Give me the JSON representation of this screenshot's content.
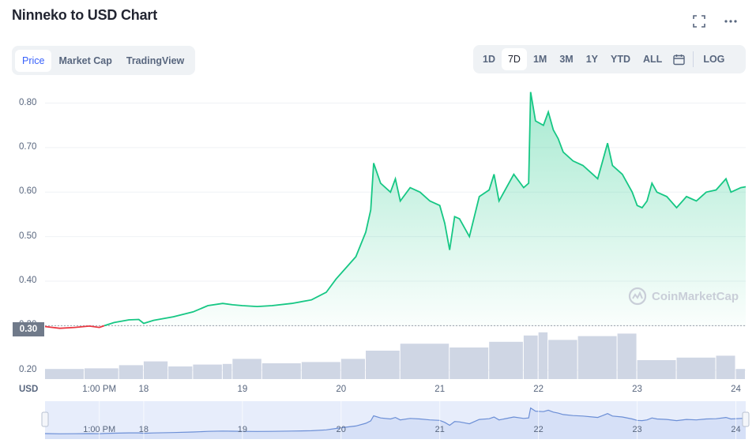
{
  "title": "Ninneko to USD Chart",
  "top_actions": [
    {
      "icon": "fullscreen-icon"
    },
    {
      "icon": "more-icon"
    }
  ],
  "chart_tabs": [
    {
      "label": "Price",
      "active": true
    },
    {
      "label": "Market Cap",
      "active": false
    },
    {
      "label": "TradingView",
      "active": false
    }
  ],
  "ranges": [
    {
      "label": "1D",
      "active": false
    },
    {
      "label": "7D",
      "active": true
    },
    {
      "label": "1M",
      "active": false
    },
    {
      "label": "3M",
      "active": false
    },
    {
      "label": "1Y",
      "active": false
    },
    {
      "label": "YTD",
      "active": false
    },
    {
      "label": "ALL",
      "active": false
    }
  ],
  "calendar_icon": "calendar-icon",
  "log_label": "LOG",
  "currency": "USD",
  "current_price_label": "0.30",
  "watermark": "CoinMarketCap",
  "colors": {
    "up": "#16c784",
    "down": "#ea3943",
    "volume": "#cfd6e4",
    "navigator_line": "#6c8fd6",
    "navigator_fill": "#e7edfb"
  },
  "chart_data": {
    "type": "line",
    "y_ticks": [
      "0.80",
      "0.70",
      "0.60",
      "0.50",
      "0.40",
      "0.30",
      "0.20"
    ],
    "ylim": [
      0.18,
      0.84
    ],
    "x_ticks": [
      "1:00 PM",
      "18",
      "19",
      "20",
      "21",
      "22",
      "23",
      "24"
    ],
    "x_tick_positions": [
      0.55,
      1.0,
      2.0,
      3.0,
      4.0,
      5.0,
      6.0,
      7.0
    ],
    "xlim": [
      0.0,
      7.1
    ],
    "series": [
      {
        "points": [
          [
            0.0,
            0.298
          ],
          [
            0.15,
            0.294
          ],
          [
            0.3,
            0.296
          ],
          [
            0.45,
            0.299
          ],
          [
            0.55,
            0.296
          ],
          [
            0.6,
            0.3
          ],
          [
            0.7,
            0.307
          ],
          [
            0.85,
            0.313
          ],
          [
            0.95,
            0.314
          ],
          [
            1.0,
            0.305
          ],
          [
            1.1,
            0.312
          ],
          [
            1.3,
            0.32
          ],
          [
            1.5,
            0.331
          ],
          [
            1.65,
            0.345
          ],
          [
            1.8,
            0.35
          ],
          [
            1.9,
            0.347
          ],
          [
            2.0,
            0.345
          ],
          [
            2.15,
            0.343
          ],
          [
            2.3,
            0.345
          ],
          [
            2.5,
            0.35
          ],
          [
            2.7,
            0.358
          ],
          [
            2.85,
            0.375
          ],
          [
            2.95,
            0.405
          ],
          [
            3.05,
            0.43
          ],
          [
            3.15,
            0.455
          ],
          [
            3.25,
            0.51
          ],
          [
            3.3,
            0.56
          ],
          [
            3.33,
            0.665
          ],
          [
            3.4,
            0.62
          ],
          [
            3.5,
            0.6
          ],
          [
            3.55,
            0.63
          ],
          [
            3.6,
            0.58
          ],
          [
            3.7,
            0.61
          ],
          [
            3.8,
            0.6
          ],
          [
            3.9,
            0.58
          ],
          [
            4.0,
            0.57
          ],
          [
            4.05,
            0.53
          ],
          [
            4.1,
            0.47
          ],
          [
            4.15,
            0.545
          ],
          [
            4.2,
            0.54
          ],
          [
            4.3,
            0.5
          ],
          [
            4.4,
            0.59
          ],
          [
            4.5,
            0.605
          ],
          [
            4.55,
            0.64
          ],
          [
            4.6,
            0.58
          ],
          [
            4.65,
            0.6
          ],
          [
            4.75,
            0.64
          ],
          [
            4.85,
            0.61
          ],
          [
            4.9,
            0.62
          ],
          [
            4.92,
            0.825
          ],
          [
            4.97,
            0.76
          ],
          [
            5.05,
            0.75
          ],
          [
            5.1,
            0.78
          ],
          [
            5.15,
            0.74
          ],
          [
            5.2,
            0.72
          ],
          [
            5.25,
            0.69
          ],
          [
            5.35,
            0.67
          ],
          [
            5.45,
            0.66
          ],
          [
            5.55,
            0.64
          ],
          [
            5.6,
            0.63
          ],
          [
            5.65,
            0.67
          ],
          [
            5.7,
            0.71
          ],
          [
            5.75,
            0.66
          ],
          [
            5.85,
            0.64
          ],
          [
            5.95,
            0.6
          ],
          [
            6.0,
            0.57
          ],
          [
            6.05,
            0.565
          ],
          [
            6.1,
            0.58
          ],
          [
            6.15,
            0.62
          ],
          [
            6.2,
            0.6
          ],
          [
            6.3,
            0.59
          ],
          [
            6.4,
            0.565
          ],
          [
            6.5,
            0.59
          ],
          [
            6.6,
            0.58
          ],
          [
            6.7,
            0.6
          ],
          [
            6.8,
            0.605
          ],
          [
            6.9,
            0.63
          ],
          [
            6.95,
            0.6
          ],
          [
            7.05,
            0.61
          ],
          [
            7.1,
            0.612
          ]
        ]
      }
    ],
    "volume": [
      [
        0.0,
        0.16
      ],
      [
        0.4,
        0.17
      ],
      [
        0.75,
        0.22
      ],
      [
        1.0,
        0.28
      ],
      [
        1.25,
        0.2
      ],
      [
        1.5,
        0.23
      ],
      [
        1.8,
        0.24
      ],
      [
        1.9,
        0.32
      ],
      [
        2.2,
        0.25
      ],
      [
        2.6,
        0.27
      ],
      [
        3.0,
        0.32
      ],
      [
        3.25,
        0.45
      ],
      [
        3.6,
        0.56
      ],
      [
        4.1,
        0.5
      ],
      [
        4.5,
        0.59
      ],
      [
        4.85,
        0.69
      ],
      [
        5.0,
        0.74
      ],
      [
        5.1,
        0.62
      ],
      [
        5.4,
        0.68
      ],
      [
        5.8,
        0.72
      ],
      [
        6.0,
        0.3
      ],
      [
        6.4,
        0.34
      ],
      [
        6.8,
        0.37
      ],
      [
        7.0,
        0.16
      ]
    ]
  },
  "navigator": {
    "labels": [
      "1:00 PM",
      "18",
      "19",
      "20",
      "21",
      "22",
      "23",
      "24"
    ]
  }
}
